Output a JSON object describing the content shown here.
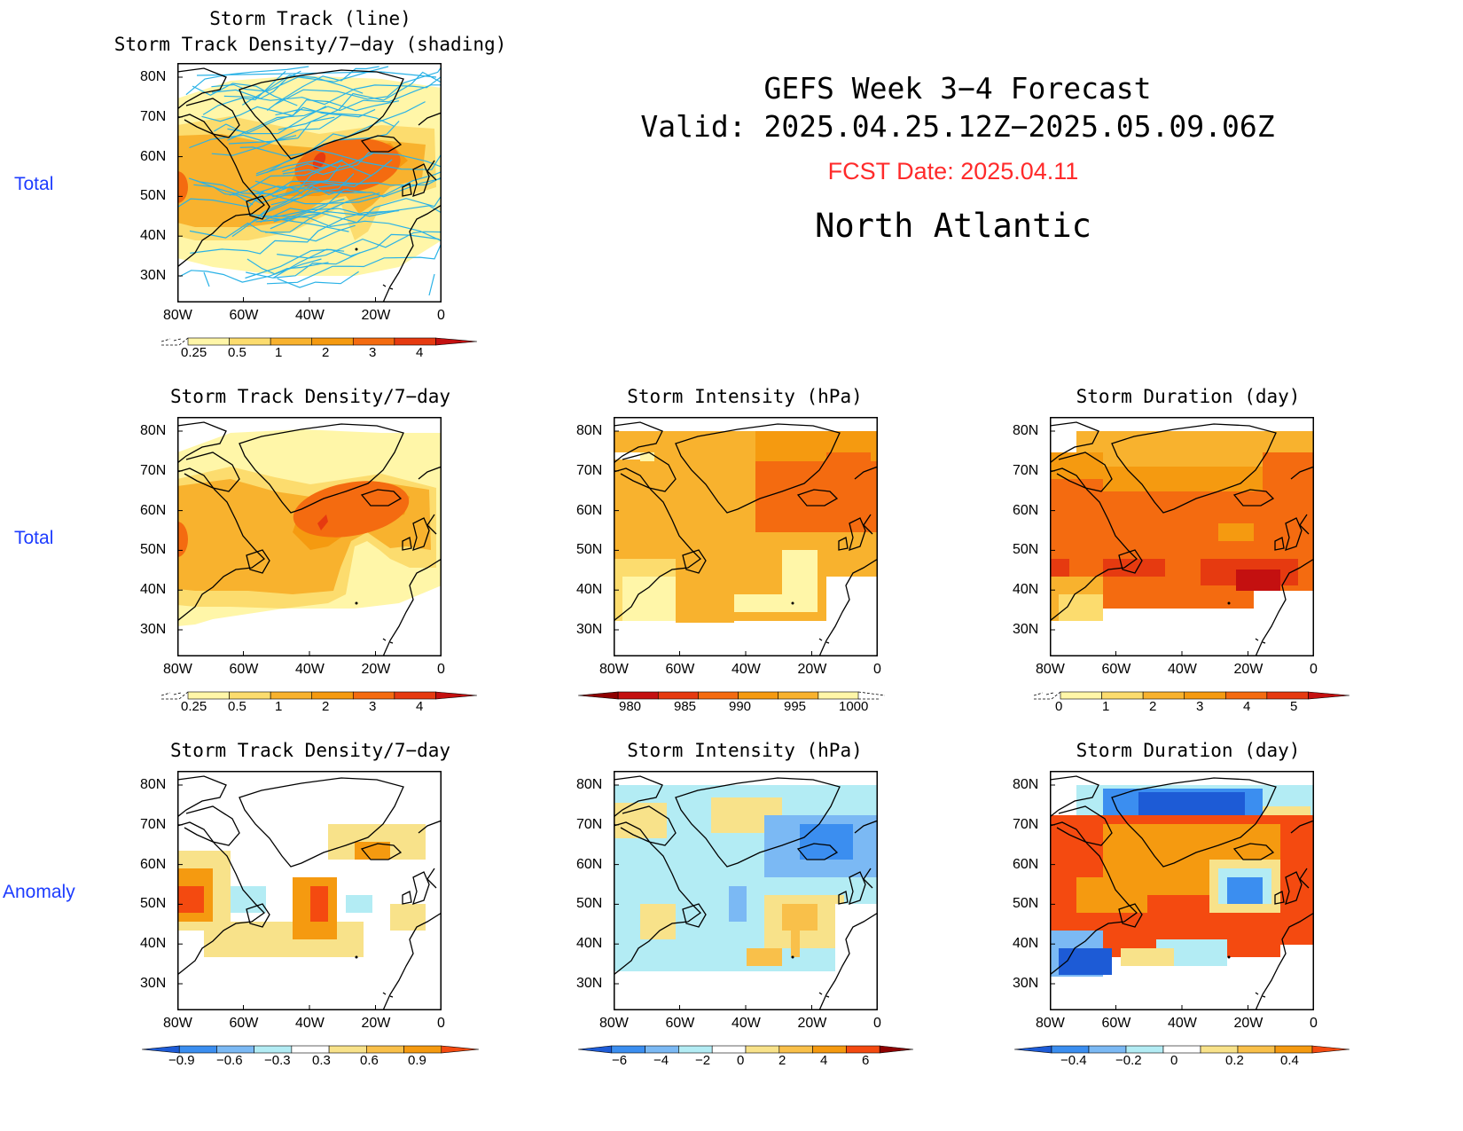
{
  "header": {
    "line1": "GEFS Week 3−4 Forecast",
    "line2": "Valid: 2025.04.25.12Z−2025.05.09.06Z",
    "fcst": "FCST Date: 2025.04.11",
    "region": "North Atlantic"
  },
  "row_labels": {
    "row1": "Total",
    "row2": "Total",
    "row3": "Anomaly"
  },
  "titles": {
    "p1a": "Storm Track (line)",
    "p1b": "Storm Track Density/7−day (shading)",
    "p2": "Storm Track Density/7−day",
    "p3": "Storm Intensity (hPa)",
    "p4": "Storm Duration (day)",
    "p5": "Storm Track Density/7−day",
    "p6": "Storm Intensity (hPa)",
    "p7": "Storm Duration (day)"
  },
  "axes": {
    "lat_ticks": [
      "80N",
      "70N",
      "60N",
      "50N",
      "40N",
      "30N"
    ],
    "lon_ticks": [
      "80W",
      "60W",
      "40W",
      "20W",
      "0"
    ]
  },
  "colorbars": {
    "density_total": [
      "0.25",
      "0.5",
      "1",
      "2",
      "3",
      "4"
    ],
    "intensity_total": [
      "980",
      "985",
      "990",
      "995",
      "1000"
    ],
    "duration_total": [
      "0",
      "1",
      "2",
      "3",
      "4",
      "5"
    ],
    "density_anom": [
      "−0.9",
      "−0.6",
      "−0.3",
      "0.3",
      "0.6",
      "0.9"
    ],
    "intensity_anom": [
      "−6",
      "−4",
      "−2",
      "0",
      "2",
      "4",
      "6"
    ],
    "duration_anom": [
      "−0.4",
      "−0.2",
      "0",
      "0.2",
      "0.4"
    ]
  },
  "colors": {
    "row_label": "#1d3cff",
    "fcst": "#ff2a2a",
    "track": "#2ab2e6",
    "warm": [
      "#fff6a8",
      "#fcdc6e",
      "#f8b22e",
      "#f59a10",
      "#f46b10",
      "#e63a10",
      "#c41010",
      "#8e0000"
    ],
    "cool": [
      "#1d5bd6",
      "#3b8ef0",
      "#7bb9f4",
      "#b3ecf4"
    ],
    "anom_warm": [
      "#f8e28a",
      "#f9c04a",
      "#f59a10",
      "#f44a10"
    ]
  }
}
